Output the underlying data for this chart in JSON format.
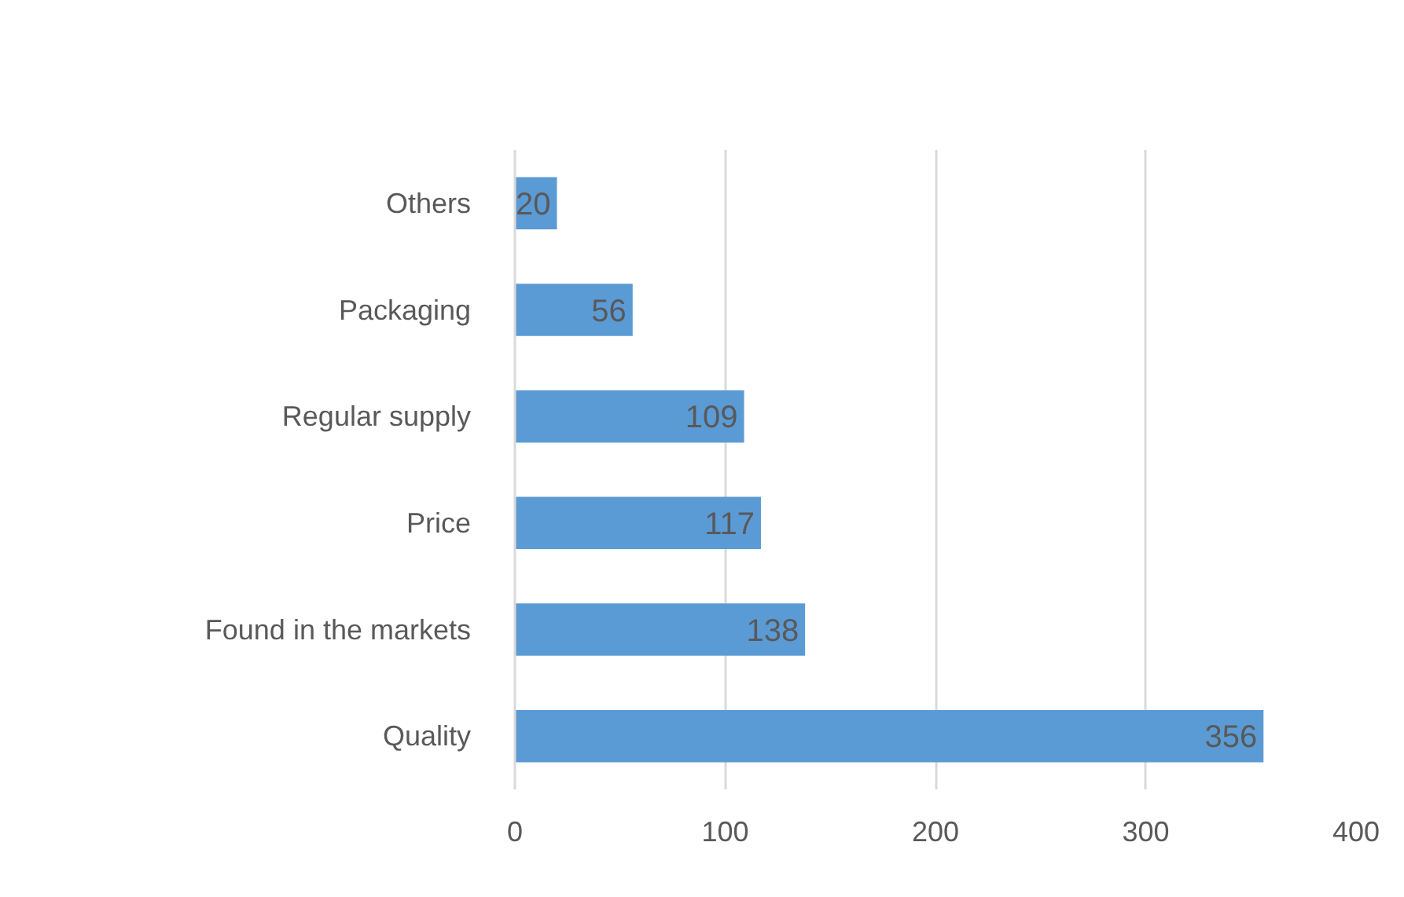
{
  "chart_data": {
    "type": "bar",
    "orientation": "horizontal",
    "categories": [
      "Others",
      "Packaging",
      "Regular supply",
      "Price",
      "Found in the markets",
      "Quality"
    ],
    "values": [
      20,
      56,
      109,
      117,
      138,
      356
    ],
    "color": "#5b9bd5",
    "xlim": [
      0,
      400
    ],
    "xticks": [
      0,
      100,
      200,
      300,
      400
    ],
    "grid": "x",
    "data_labels": true
  }
}
